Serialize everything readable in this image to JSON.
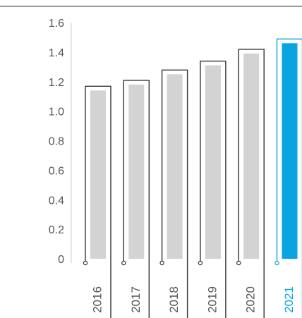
{
  "chart_data": {
    "type": "bar",
    "title": "",
    "xlabel": "",
    "ylabel": "",
    "ylim": [
      0,
      1.6
    ],
    "yticks": [
      0,
      0.2,
      0.4,
      0.6,
      0.8,
      1.0,
      1.2,
      1.4,
      1.6
    ],
    "ytick_labels": [
      "0",
      "0.2",
      "0.4",
      "0.6",
      "0.8",
      "1.0",
      "1.2",
      "1.4",
      "1.6"
    ],
    "categories": [
      "2016",
      "2017",
      "2018",
      "2019",
      "2020",
      "2021"
    ],
    "values": [
      1.14,
      1.18,
      1.25,
      1.31,
      1.39,
      1.46
    ],
    "highlight_index": 5,
    "grid": false,
    "colors": {
      "bar": "#d3d3d3",
      "highlight_bar": "#0aa5e0",
      "outline": "#333333",
      "highlight_outline": "#0aa5e0",
      "text": "#555555",
      "highlight_text": "#0aa5e0"
    }
  }
}
